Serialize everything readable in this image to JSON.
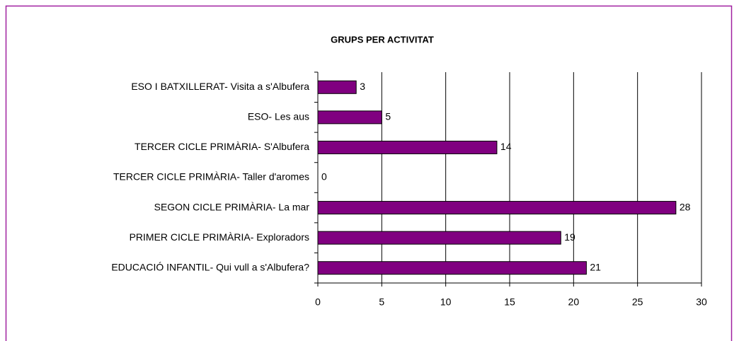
{
  "chart_data": {
    "type": "bar",
    "orientation": "horizontal",
    "title": "GRUPS PER ACTIVITAT",
    "categories": [
      "ESO I BATXILLERAT- Visita a s'Albufera",
      "ESO- Les aus",
      "TERCER CICLE PRIMÀRIA- S'Albufera",
      "TERCER CICLE PRIMÀRIA- Taller d'aromes",
      "SEGON CICLE PRIMÀRIA- La mar",
      "PRIMER CICLE PRIMÀRIA- Exploradors",
      "EDUCACIÓ INFANTIL- Qui vull a s'Albufera?"
    ],
    "values": [
      3,
      5,
      14,
      0,
      28,
      19,
      21
    ],
    "color": "#800080",
    "xlim": [
      0,
      30
    ],
    "xticks": [
      0,
      5,
      10,
      15,
      20,
      25,
      30
    ],
    "grid": true
  }
}
